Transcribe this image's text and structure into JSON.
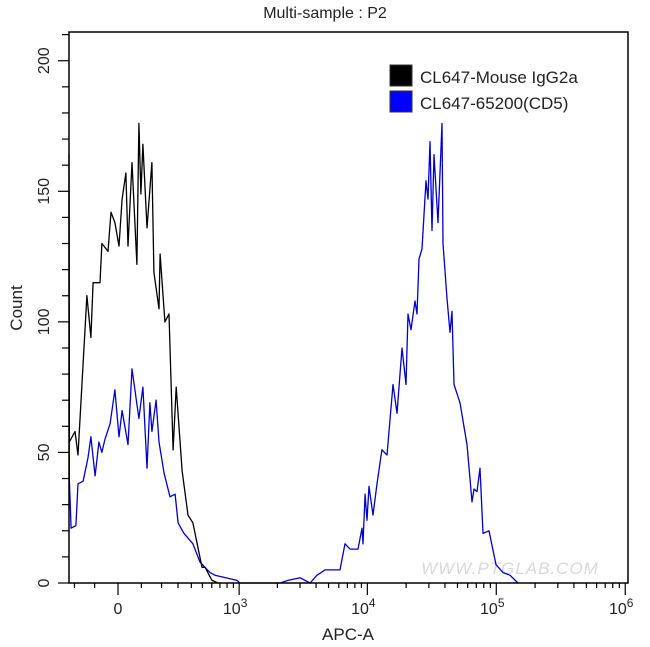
{
  "chart_data": {
    "type": "line",
    "title": "Multi-sample : P2",
    "xlabel": "APC-A",
    "ylabel": "Count",
    "x_scale": "biexponential",
    "xlim": [
      -231,
      1000000
    ],
    "ylim": [
      0,
      211
    ],
    "grid": false,
    "legend_position": "top-right",
    "x_ticks": [
      {
        "value": 0,
        "base": "0",
        "exp": ""
      },
      {
        "value": 1000,
        "base": "10",
        "exp": "3"
      },
      {
        "value": 10000,
        "base": "10",
        "exp": "4"
      },
      {
        "value": 100000,
        "base": "10",
        "exp": "5"
      },
      {
        "value": 1000000,
        "base": "10",
        "exp": "6"
      }
    ],
    "y_ticks": [
      0,
      50,
      100,
      150,
      200
    ],
    "series": [
      {
        "name": "CL647-Mouse IgG2a",
        "color": "#000000",
        "x": [
          -231,
          -229,
          -197,
          -181,
          -155,
          -136,
          -117,
          -107,
          -76,
          -68,
          -42,
          -29,
          -13,
          4,
          17,
          33,
          42,
          59,
          80,
          89,
          98,
          107,
          126,
          150,
          160,
          186,
          192,
          219,
          243,
          268,
          288,
          329,
          373,
          413,
          496,
          526,
          603,
          675
        ],
        "y": [
          164,
          54,
          58,
          49,
          84,
          110,
          94,
          115,
          115,
          130,
          127,
          142,
          138,
          129,
          147,
          157,
          129,
          161,
          122,
          176,
          149,
          168,
          136,
          161,
          119,
          105,
          126,
          100,
          103,
          51,
          75,
          43,
          26,
          23,
          6,
          6,
          1,
          0
        ]
      },
      {
        "name": "CL647-65200(CD5)",
        "color": "#0000cc",
        "x": [
          -231,
          -229,
          -219,
          -192,
          -181,
          -155,
          -131,
          -117,
          -98,
          -81,
          -68,
          -55,
          -33,
          -13,
          4,
          17,
          42,
          59,
          89,
          107,
          126,
          140,
          150,
          171,
          186,
          214,
          249,
          281,
          301,
          343,
          413,
          477,
          580,
          638,
          962,
          1016,
          2097,
          2420,
          3005,
          3593,
          4070,
          4693,
          6135,
          6710,
          7340,
          8460,
          9090,
          9250,
          9600,
          9930,
          10300,
          11070,
          11880,
          12980,
          14210,
          15820,
          16990,
          18570,
          19950,
          20670,
          21810,
          23440,
          24280,
          25160,
          26560,
          28500,
          29540,
          30600,
          31720,
          32880,
          35300,
          37930,
          38630,
          41470,
          43760,
          45350,
          47000,
          52310,
          59280,
          64770,
          67160,
          70900,
          74760,
          78900,
          87820,
          99500,
          112800,
          127800,
          147400
        ],
        "y": [
          150,
          40,
          21,
          22,
          38,
          39,
          48,
          56,
          41,
          54,
          50,
          55,
          61,
          74,
          56,
          66,
          53,
          82,
          63,
          75,
          44,
          69,
          58,
          70,
          54,
          42,
          33,
          34,
          23,
          19,
          15,
          8,
          4,
          3,
          1,
          0,
          0,
          1,
          2,
          0,
          3,
          5,
          5,
          15,
          13,
          13,
          21,
          15,
          34,
          24,
          37,
          26,
          38,
          51,
          49,
          76,
          65,
          90,
          76,
          103,
          97,
          108,
          103,
          124,
          128,
          154,
          147,
          169,
          135,
          164,
          138,
          176,
          130,
          109,
          96,
          104,
          76,
          69,
          53,
          31,
          36,
          35,
          44,
          19,
          20,
          7,
          4,
          3,
          0
        ]
      }
    ]
  },
  "watermark": "WWW.PTGLAB.COM"
}
